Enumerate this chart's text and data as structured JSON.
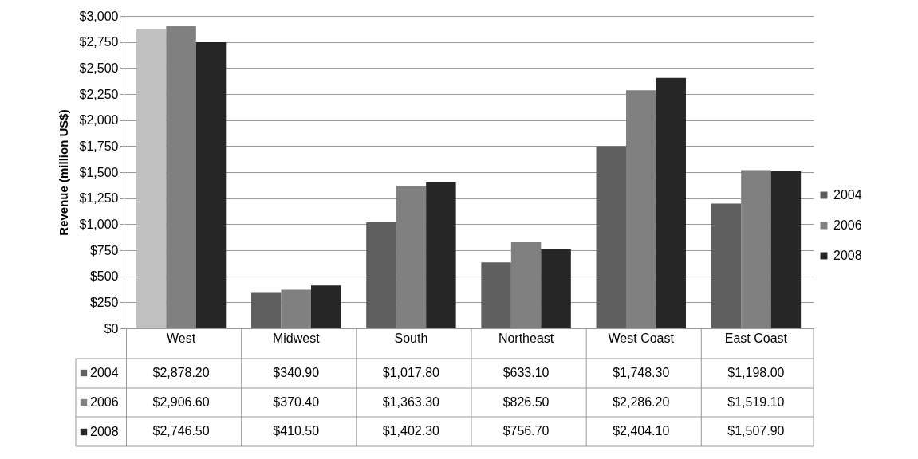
{
  "chart_data": {
    "type": "bar",
    "ylabel": "Revenue (million US$)",
    "categories": [
      "West",
      "Midwest",
      "South",
      "Northeast",
      "West Coast",
      "East Coast"
    ],
    "series": [
      {
        "name": "2004",
        "color": "#5f5f5f",
        "colors": [
          "#c0c0c0",
          "#5f5f5f",
          "#5f5f5f",
          "#5f5f5f",
          "#5f5f5f",
          "#5f5f5f"
        ],
        "values": [
          2878.2,
          340.9,
          1017.8,
          633.1,
          1748.3,
          1198.0
        ],
        "value_labels": [
          "$2,878.20",
          "$340.90",
          "$1,017.80",
          "$633.10",
          "$1,748.30",
          "$1,198.00"
        ]
      },
      {
        "name": "2006",
        "color": "#808080",
        "values": [
          2906.6,
          370.4,
          1363.3,
          826.5,
          2286.2,
          1519.1
        ],
        "value_labels": [
          "$2,906.60",
          "$370.40",
          "$1,363.30",
          "$826.50",
          "$2,286.20",
          "$1,519.10"
        ]
      },
      {
        "name": "2008",
        "color": "#262626",
        "values": [
          2746.5,
          410.5,
          1402.3,
          756.7,
          2404.1,
          1507.9
        ],
        "value_labels": [
          "$2,746.50",
          "$410.50",
          "$1,402.30",
          "$756.70",
          "$2,404.10",
          "$1,507.90"
        ]
      }
    ],
    "ylim": [
      0,
      3000
    ],
    "yticks": [
      {
        "value": 0,
        "label": "$0"
      },
      {
        "value": 250,
        "label": "$250"
      },
      {
        "value": 500,
        "label": "$500"
      },
      {
        "value": 750,
        "label": "$750"
      },
      {
        "value": 1000,
        "label": "$1,000"
      },
      {
        "value": 1250,
        "label": "$1,250"
      },
      {
        "value": 1500,
        "label": "$1,500"
      },
      {
        "value": 1750,
        "label": "$1,750"
      },
      {
        "value": 2000,
        "label": "$2,000"
      },
      {
        "value": 2250,
        "label": "$2,250"
      },
      {
        "value": 2500,
        "label": "$2,500"
      },
      {
        "value": 2750,
        "label": "$2,750"
      },
      {
        "value": 3000,
        "label": "$3,000"
      }
    ],
    "grid": "y",
    "legend": "right"
  }
}
